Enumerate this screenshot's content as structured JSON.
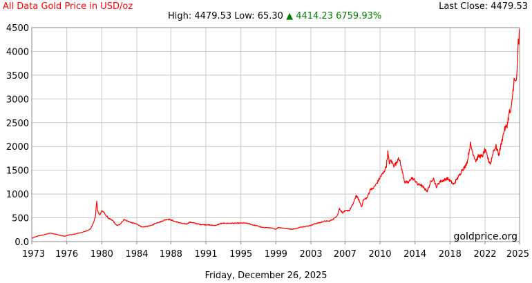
{
  "header": {
    "title": "All Data Gold Price in USD/oz",
    "last_close": "Last Close: 4479.53",
    "high": "High: 4479.53",
    "low": "Low: 65.30",
    "change_arrow": "▲",
    "change_abs": "4414.23",
    "change_pct": "6759.93%"
  },
  "watermark": "goldprice.org",
  "footer_date": "Friday, December 26, 2025",
  "colors": {
    "line": "#ff0000",
    "title": "#ff0000",
    "up": "#008000",
    "grid": "#c8c8c8"
  },
  "chart_data": {
    "type": "line",
    "xlim": [
      1973.0,
      2025.95
    ],
    "ylim": [
      0,
      4500
    ],
    "grid": true,
    "x_ticks": [
      {
        "value": 1973.0,
        "label": "1973"
      },
      {
        "value": 1976.8,
        "label": "1976"
      },
      {
        "value": 1980.6,
        "label": "1980"
      },
      {
        "value": 1984.4,
        "label": "1984"
      },
      {
        "value": 1988.1,
        "label": "1988"
      },
      {
        "value": 1991.9,
        "label": "1991"
      },
      {
        "value": 1995.7,
        "label": "1995"
      },
      {
        "value": 1999.5,
        "label": "1999"
      },
      {
        "value": 2003.3,
        "label": "2003"
      },
      {
        "value": 2007.0,
        "label": "2007"
      },
      {
        "value": 2010.8,
        "label": "2010"
      },
      {
        "value": 2014.6,
        "label": "2014"
      },
      {
        "value": 2018.4,
        "label": "2018"
      },
      {
        "value": 2022.2,
        "label": "2022"
      },
      {
        "value": 2025.95,
        "label": "2025"
      }
    ],
    "y_ticks": [
      {
        "value": 0,
        "label": "0.0"
      },
      {
        "value": 500,
        "label": "500"
      },
      {
        "value": 1000,
        "label": "1000"
      },
      {
        "value": 1500,
        "label": "1500"
      },
      {
        "value": 2000,
        "label": "2000"
      },
      {
        "value": 2500,
        "label": "2500"
      },
      {
        "value": 3000,
        "label": "3000"
      },
      {
        "value": 3500,
        "label": "3500"
      },
      {
        "value": 4000,
        "label": "4000"
      },
      {
        "value": 4500,
        "label": "4500"
      }
    ],
    "series": [
      {
        "points": [
          [
            1973.0,
            65
          ],
          [
            1973.5,
            110
          ],
          [
            1974.0,
            130
          ],
          [
            1974.5,
            150
          ],
          [
            1975.0,
            180
          ],
          [
            1975.5,
            160
          ],
          [
            1976.0,
            135
          ],
          [
            1976.6,
            110
          ],
          [
            1977.0,
            140
          ],
          [
            1977.5,
            150
          ],
          [
            1978.0,
            175
          ],
          [
            1978.5,
            195
          ],
          [
            1979.0,
            230
          ],
          [
            1979.4,
            270
          ],
          [
            1979.7,
            400
          ],
          [
            1979.9,
            520
          ],
          [
            1980.05,
            850
          ],
          [
            1980.15,
            640
          ],
          [
            1980.4,
            560
          ],
          [
            1980.6,
            650
          ],
          [
            1980.8,
            620
          ],
          [
            1981.0,
            560
          ],
          [
            1981.4,
            480
          ],
          [
            1981.8,
            440
          ],
          [
            1982.2,
            340
          ],
          [
            1982.6,
            360
          ],
          [
            1983.0,
            470
          ],
          [
            1983.4,
            430
          ],
          [
            1983.8,
            400
          ],
          [
            1984.2,
            380
          ],
          [
            1984.6,
            350
          ],
          [
            1985.0,
            300
          ],
          [
            1985.5,
            320
          ],
          [
            1986.0,
            340
          ],
          [
            1986.5,
            390
          ],
          [
            1987.0,
            420
          ],
          [
            1987.5,
            460
          ],
          [
            1987.9,
            470
          ],
          [
            1988.3,
            440
          ],
          [
            1988.8,
            410
          ],
          [
            1989.3,
            380
          ],
          [
            1989.8,
            370
          ],
          [
            1990.2,
            410
          ],
          [
            1990.8,
            380
          ],
          [
            1991.3,
            360
          ],
          [
            1991.9,
            355
          ],
          [
            1992.5,
            345
          ],
          [
            1993.0,
            340
          ],
          [
            1993.5,
            380
          ],
          [
            1994.0,
            385
          ],
          [
            1995.0,
            385
          ],
          [
            1996.0,
            390
          ],
          [
            1996.5,
            380
          ],
          [
            1997.0,
            350
          ],
          [
            1997.5,
            330
          ],
          [
            1998.0,
            295
          ],
          [
            1998.5,
            295
          ],
          [
            1999.0,
            285
          ],
          [
            1999.5,
            260
          ],
          [
            1999.8,
            300
          ],
          [
            2000.2,
            285
          ],
          [
            2000.8,
            270
          ],
          [
            2001.3,
            260
          ],
          [
            2001.8,
            280
          ],
          [
            2002.3,
            310
          ],
          [
            2002.8,
            320
          ],
          [
            2003.3,
            340
          ],
          [
            2003.8,
            380
          ],
          [
            2004.3,
            400
          ],
          [
            2004.8,
            430
          ],
          [
            2005.3,
            430
          ],
          [
            2005.8,
            480
          ],
          [
            2006.2,
            560
          ],
          [
            2006.4,
            700
          ],
          [
            2006.7,
            610
          ],
          [
            2007.0,
            640
          ],
          [
            2007.5,
            660
          ],
          [
            2007.9,
            800
          ],
          [
            2008.2,
            970
          ],
          [
            2008.5,
            880
          ],
          [
            2008.8,
            730
          ],
          [
            2009.0,
            880
          ],
          [
            2009.4,
            920
          ],
          [
            2009.8,
            1120
          ],
          [
            2010.0,
            1100
          ],
          [
            2010.5,
            1240
          ],
          [
            2010.9,
            1380
          ],
          [
            2011.2,
            1450
          ],
          [
            2011.5,
            1600
          ],
          [
            2011.65,
            1880
          ],
          [
            2011.8,
            1650
          ],
          [
            2012.0,
            1700
          ],
          [
            2012.3,
            1600
          ],
          [
            2012.6,
            1650
          ],
          [
            2012.8,
            1780
          ],
          [
            2013.0,
            1650
          ],
          [
            2013.3,
            1400
          ],
          [
            2013.5,
            1250
          ],
          [
            2013.9,
            1240
          ],
          [
            2014.2,
            1340
          ],
          [
            2014.6,
            1290
          ],
          [
            2014.9,
            1200
          ],
          [
            2015.2,
            1200
          ],
          [
            2015.6,
            1120
          ],
          [
            2015.95,
            1060
          ],
          [
            2016.3,
            1250
          ],
          [
            2016.6,
            1340
          ],
          [
            2016.9,
            1150
          ],
          [
            2017.3,
            1260
          ],
          [
            2017.7,
            1290
          ],
          [
            2018.1,
            1330
          ],
          [
            2018.4,
            1280
          ],
          [
            2018.8,
            1200
          ],
          [
            2019.1,
            1300
          ],
          [
            2019.5,
            1420
          ],
          [
            2019.7,
            1510
          ],
          [
            2020.0,
            1560
          ],
          [
            2020.3,
            1700
          ],
          [
            2020.6,
            2050
          ],
          [
            2020.9,
            1860
          ],
          [
            2021.2,
            1700
          ],
          [
            2021.5,
            1800
          ],
          [
            2021.9,
            1790
          ],
          [
            2022.2,
            1930
          ],
          [
            2022.6,
            1700
          ],
          [
            2022.8,
            1640
          ],
          [
            2023.1,
            1900
          ],
          [
            2023.4,
            2000
          ],
          [
            2023.7,
            1820
          ],
          [
            2023.95,
            2050
          ],
          [
            2024.3,
            2350
          ],
          [
            2024.6,
            2450
          ],
          [
            2024.85,
            2730
          ],
          [
            2025.0,
            2700
          ],
          [
            2025.2,
            3100
          ],
          [
            2025.35,
            3400
          ],
          [
            2025.5,
            3350
          ],
          [
            2025.65,
            3450
          ],
          [
            2025.75,
            3800
          ],
          [
            2025.8,
            4300
          ],
          [
            2025.87,
            4100
          ],
          [
            2025.92,
            4350
          ],
          [
            2025.95,
            4480
          ]
        ]
      }
    ]
  }
}
